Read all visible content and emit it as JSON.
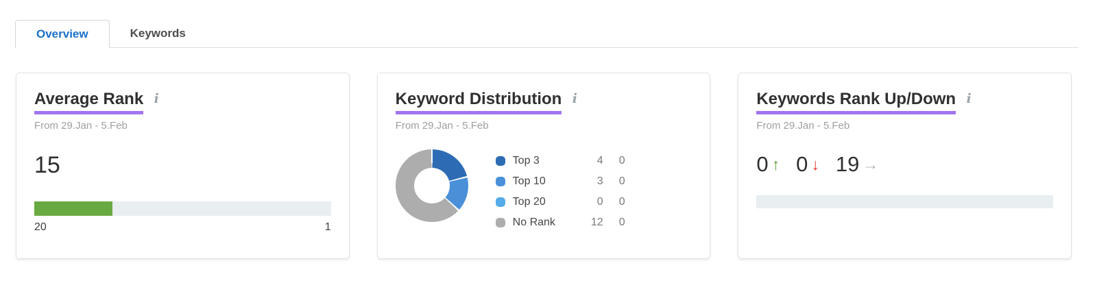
{
  "tabs": [
    {
      "label": "Overview",
      "active": true
    },
    {
      "label": "Keywords",
      "active": false
    }
  ],
  "colors": {
    "accent_blue": "#1a70c8",
    "highlight_purple": "#a175ef",
    "bar_green": "#69a942",
    "bar_track": "#e9eef1",
    "up_green": "#61a338",
    "down_red": "#df3a2e",
    "neutral_gray": "#b3b3b3"
  },
  "cards": {
    "average_rank": {
      "title": "Average Rank",
      "info_icon": "i",
      "period": "From 29.Jan - 5.Feb",
      "value": 15,
      "scale_start": 20,
      "scale_end": 1,
      "scale_start_label": "20",
      "scale_end_label": "1"
    },
    "keyword_distribution": {
      "title": "Keyword Distribution",
      "info_icon": "i",
      "period": "From 29.Jan - 5.Feb",
      "legend": [
        {
          "label": "Top 3",
          "value": 4,
          "change": 0,
          "color": "#2d6cb5"
        },
        {
          "label": "Top 10",
          "value": 3,
          "change": 0,
          "color": "#4a90d9"
        },
        {
          "label": "Top 20",
          "value": 0,
          "change": 0,
          "color": "#55ace8"
        },
        {
          "label": "No Rank",
          "value": 12,
          "change": 0,
          "color": "#adadad"
        }
      ]
    },
    "keywords_rank_up_down": {
      "title": "Keywords Rank Up/Down",
      "info_icon": "i",
      "period": "From 29.Jan - 5.Feb",
      "up": {
        "value": 0,
        "arrow": "↑"
      },
      "down": {
        "value": 0,
        "arrow": "↓"
      },
      "unchanged": {
        "value": 19,
        "arrow": "→"
      }
    }
  },
  "chart_data": [
    {
      "type": "pie",
      "title": "Keyword Distribution",
      "categories": [
        "Top 3",
        "Top 10",
        "Top 20",
        "No Rank"
      ],
      "values": [
        4,
        3,
        0,
        12
      ],
      "colors": [
        "#2d6cb5",
        "#4a90d9",
        "#55ace8",
        "#adadad"
      ],
      "legend_position": "right",
      "donut": true
    },
    {
      "type": "bar",
      "title": "Average Rank",
      "categories": [
        "Average Rank"
      ],
      "values": [
        15
      ],
      "xlim": [
        20,
        1
      ],
      "bar_color": "#69a942"
    }
  ]
}
